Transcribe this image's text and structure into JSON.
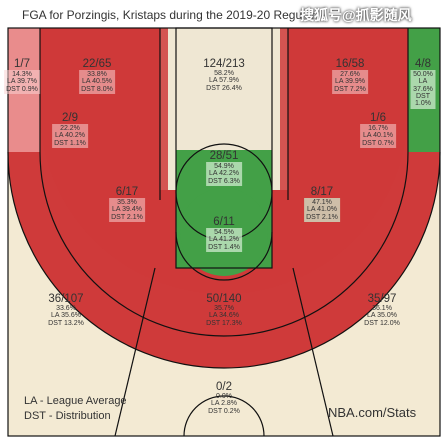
{
  "title": "FGA for Porzingis, Kristaps during the 2019-20 Regular",
  "watermark": "搜狐号@抓影随风",
  "colors": {
    "hot_red": "#cf3a3a",
    "above_avg": "#e98c8c",
    "below_avg": "#43a047",
    "light_green": "#9dd6a0",
    "neutral": "#efe7d3",
    "floor": "#f3ead3",
    "line": "#111111"
  },
  "zones": [
    {
      "id": "left-corner-3",
      "fg": "1/7",
      "pct": "14.3%",
      "la": "LA 39.7%",
      "dst": "DST 0.9%"
    },
    {
      "id": "left-wing-3",
      "fg": "22/65",
      "pct": "33.8%",
      "la": "LA 40.5%",
      "dst": "DST 8.0%"
    },
    {
      "id": "top-of-key-3",
      "fg": "124/213",
      "pct": "58.2%",
      "la": "LA 57.9%",
      "dst": "DST 26.4%"
    },
    {
      "id": "right-wing-3",
      "fg": "16/58",
      "pct": "27.6%",
      "la": "LA 39.9%",
      "dst": "DST 7.2%"
    },
    {
      "id": "right-corner-3",
      "fg": "4/8",
      "pct": "50.0%",
      "la": "LA 37.6%",
      "dst": "DST 1.0%"
    },
    {
      "id": "left-baseline-mid",
      "fg": "2/9",
      "pct": "22.2%",
      "la": "LA 40.2%",
      "dst": "DST 1.1%"
    },
    {
      "id": "right-baseline-mid",
      "fg": "1/6",
      "pct": "16.7%",
      "la": "LA 40.1%",
      "dst": "DST 0.7%"
    },
    {
      "id": "paint-upper",
      "fg": "28/51",
      "pct": "54.9%",
      "la": "LA 42.2%",
      "dst": "DST 6.3%"
    },
    {
      "id": "left-elbow-mid",
      "fg": "6/17",
      "pct": "35.3%",
      "la": "LA 39.4%",
      "dst": "DST 2.1%"
    },
    {
      "id": "right-elbow-mid",
      "fg": "8/17",
      "pct": "47.1%",
      "la": "LA 41.0%",
      "dst": "DST 2.1%"
    },
    {
      "id": "restricted-area",
      "fg": "6/11",
      "pct": "54.5%",
      "la": "LA 41.2%",
      "dst": "DST 1.4%"
    },
    {
      "id": "left-wing-3-deep",
      "fg": "36/107",
      "pct": "33.6%",
      "la": "LA 35.6%",
      "dst": "DST 13.2%"
    },
    {
      "id": "center-3-deep",
      "fg": "50/140",
      "pct": "35.7%",
      "la": "LA 34.6%",
      "dst": "DST 17.3%"
    },
    {
      "id": "right-wing-3-deep",
      "fg": "35/97",
      "pct": "36.1%",
      "la": "LA 35.0%",
      "dst": "DST 12.0%"
    },
    {
      "id": "backcourt",
      "fg": "0/2",
      "pct": "0.0%",
      "la": "LA 2.8%",
      "dst": "DST 0.2%"
    }
  ],
  "legend": {
    "la": "LA - League Average",
    "dst": "DST - Distribution"
  },
  "source": "NBA.com/Stats"
}
